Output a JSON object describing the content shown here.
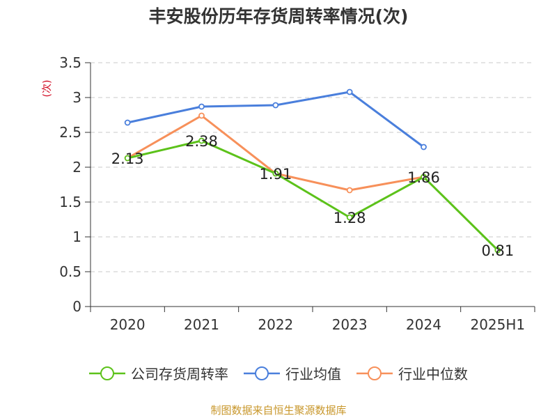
{
  "chart_data": {
    "type": "line",
    "title": "丰安股份历年存货周转率情况(次)",
    "ylabel": "(次)",
    "categories": [
      "2020",
      "2021",
      "2022",
      "2023",
      "2024",
      "2025H1"
    ],
    "ylim": [
      0,
      3.5
    ],
    "yticks": [
      0,
      0.5,
      1,
      1.5,
      2,
      2.5,
      3,
      3.5
    ],
    "ytick_labels": [
      "0",
      "0.5",
      "1",
      "1.5",
      "2",
      "2.5",
      "3",
      "3.5"
    ],
    "grid": true,
    "legend_position": "bottom",
    "series": [
      {
        "name": "公司存货周转率",
        "color": "#5cc21a",
        "values": [
          2.13,
          2.38,
          1.91,
          1.28,
          1.86,
          0.81
        ],
        "labels": [
          "2.13",
          "2.38",
          "1.91",
          "1.28",
          "1.86",
          "0.81"
        ]
      },
      {
        "name": "行业均值",
        "color": "#4a7fdc",
        "values": [
          2.64,
          2.87,
          2.89,
          3.08,
          2.29,
          null
        ]
      },
      {
        "name": "行业中位数",
        "color": "#f7905a",
        "values": [
          2.13,
          2.74,
          1.91,
          1.67,
          1.86,
          null
        ]
      }
    ]
  },
  "source": "制图数据来自恒生聚源数据库"
}
